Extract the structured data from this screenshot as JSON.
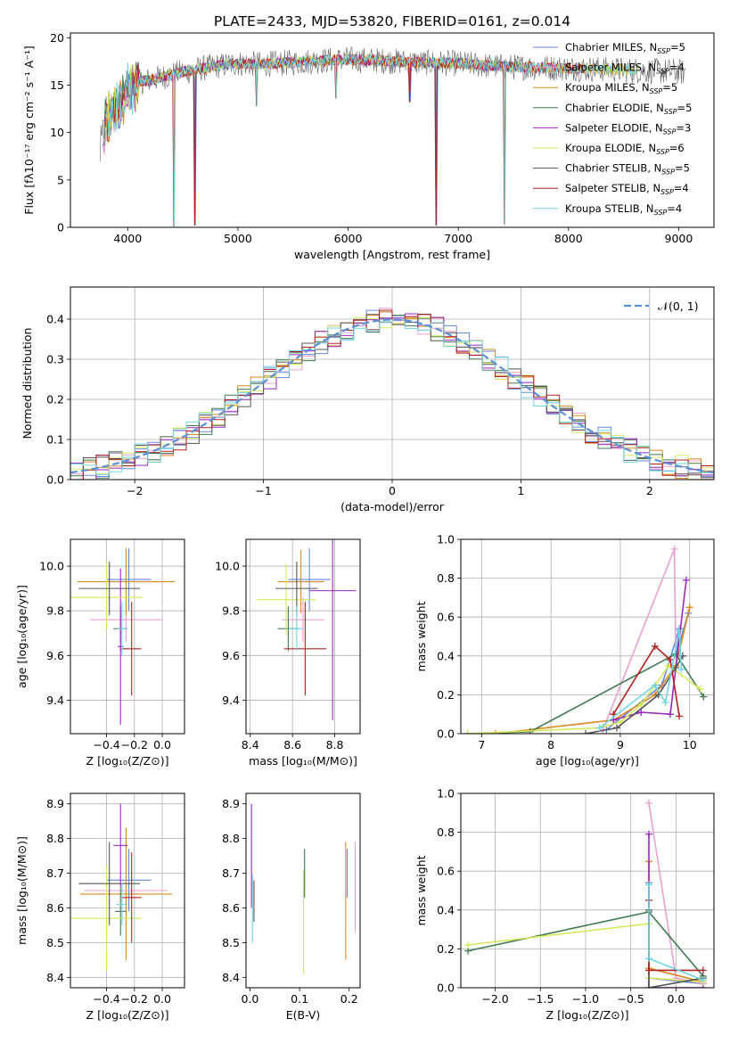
{
  "figure": {
    "title": "PLATE=2433, MJD=53820, FIBERID=0161, z=0.014"
  },
  "colors": {
    "series": [
      "#6688dd",
      "#e8a0d0",
      "#d98a20",
      "#3f7a50",
      "#9a28c0",
      "#d6e85a",
      "#555555",
      "#b22222",
      "#6fd6e0"
    ],
    "cmiles": "#6688dd",
    "smiles": "#e8a0d0",
    "kmiles": "#d98a20",
    "celodie": "#3f7a50",
    "selodie": "#9a28c0",
    "kelodie": "#d6e85a",
    "cstelib": "#555555",
    "sstelib": "#b22222",
    "kstelib": "#6fd6e0",
    "gauss": "#5b8fd6"
  },
  "chart_data": [
    {
      "id": "spectrum",
      "type": "line",
      "xlabel": "wavelength [Angstrom, rest frame]",
      "ylabel": "Flux [fλ10⁻¹⁷ erg cm⁻² s⁻¹ A⁻¹]",
      "xlim": [
        3480,
        9320
      ],
      "ylim": [
        0,
        20.5
      ],
      "xticks": [
        4000,
        5000,
        6000,
        7000,
        8000,
        9000
      ],
      "yticks": [
        0,
        5,
        10,
        15,
        20
      ],
      "legend_position": "top-right",
      "legend": [
        "Chabrier MILES, N_SSP=5",
        "Salpeter MILES, N_SSP=4",
        "Kroupa MILES, N_SSP=5",
        "Chabrier ELODIE, N_SSP=5",
        "Salpeter ELODIE, N_SSP=3",
        "Kroupa ELODIE, N_SSP=6",
        "Chabrier STELIB, N_SSP=5",
        "Salpeter STELIB, N_SSP=4",
        "Kroupa STELIB, N_SSP=4"
      ],
      "continuum": {
        "x": [
          3750,
          3800,
          3900,
          4000,
          4100,
          4300,
          4500,
          4800,
          5000,
          5200,
          5500,
          5800,
          6000,
          6300,
          6600,
          7000,
          7300,
          7600,
          8000,
          8500,
          9000,
          9060
        ],
        "y": [
          7.5,
          11.0,
          12.5,
          14.5,
          15.3,
          15.8,
          16.4,
          17.0,
          17.3,
          17.2,
          17.4,
          17.6,
          17.7,
          17.6,
          17.4,
          17.3,
          17.0,
          16.9,
          16.8,
          16.6,
          16.4,
          16.3
        ]
      },
      "absorption_lines": [
        {
          "x": 4420,
          "y": 0.1
        },
        {
          "x": 4610,
          "y": 0.2
        },
        {
          "x": 5170,
          "y": 12.8
        },
        {
          "x": 5890,
          "y": 13.6
        },
        {
          "x": 6560,
          "y": 13.2
        },
        {
          "x": 6800,
          "y": 0.2
        },
        {
          "x": 7420,
          "y": 0.3
        }
      ]
    },
    {
      "id": "residuals",
      "type": "line",
      "xlabel": "(data-model)/error",
      "ylabel": "Normed distribution",
      "xlim": [
        -2.5,
        2.5
      ],
      "ylim": [
        0,
        0.48
      ],
      "xticks": [
        -2,
        -1,
        0,
        1,
        2
      ],
      "yticks": [
        0.0,
        0.1,
        0.2,
        0.3,
        0.4
      ],
      "grid": true,
      "legend": [
        "𝒩(0, 1)"
      ],
      "legend_position": "top-right",
      "bin_width": 0.1,
      "bin_start": -2.5,
      "gaussian": {
        "mean": 0,
        "sigma": 1
      }
    },
    {
      "id": "age_vs_Z",
      "type": "scatter",
      "xlabel": "Z [log₁₀(Z/Z⊙)]",
      "ylabel": "age  [log₁₀(age/yr)]",
      "xlim": [
        -0.66,
        0.16
      ],
      "ylim": [
        9.25,
        10.12
      ],
      "xticks": [
        -0.4,
        -0.2,
        0.0
      ],
      "yticks": [
        9.4,
        9.6,
        9.8,
        10.0
      ],
      "grid": true,
      "points": [
        {
          "x": -0.24,
          "y": 9.94,
          "xerr": 0.16,
          "yerr": 0.14,
          "s": 0
        },
        {
          "x": -0.26,
          "y": 9.76,
          "xerr": 0.26,
          "yerr": 0.1,
          "s": 1
        },
        {
          "x": -0.26,
          "y": 9.93,
          "xerr": 0.35,
          "yerr": 0.15,
          "s": 2
        },
        {
          "x": -0.3,
          "y": 9.72,
          "xerr": 0.05,
          "yerr": 0.1,
          "s": 3
        },
        {
          "x": -0.3,
          "y": 9.64,
          "xerr": 0.02,
          "yerr": 0.35,
          "s": 4
        },
        {
          "x": -0.4,
          "y": 9.86,
          "xerr": 0.26,
          "yerr": 0.15,
          "s": 5
        },
        {
          "x": -0.38,
          "y": 9.9,
          "xerr": 0.22,
          "yerr": 0.12,
          "s": 6
        },
        {
          "x": -0.22,
          "y": 9.63,
          "xerr": 0.07,
          "yerr": 0.21,
          "s": 7
        },
        {
          "x": -0.29,
          "y": 9.72,
          "xerr": 0.04,
          "yerr": 0.12,
          "s": 8
        }
      ]
    },
    {
      "id": "age_vs_mass",
      "type": "scatter",
      "xlabel": "mass [log₁₀(M/M⊙)]",
      "ylabel": "",
      "xlim": [
        8.38,
        8.92
      ],
      "ylim": [
        9.25,
        10.12
      ],
      "xticks": [
        8.4,
        8.6,
        8.8
      ],
      "yticks": [
        9.4,
        9.6,
        9.8,
        10.0
      ],
      "grid": true,
      "points": [
        {
          "x": 8.68,
          "y": 9.94,
          "xerr": 0.1,
          "yerr": 0.14,
          "s": 0
        },
        {
          "x": 8.65,
          "y": 9.76,
          "xerr": 0.1,
          "yerr": 0.1,
          "s": 1
        },
        {
          "x": 8.64,
          "y": 9.93,
          "xerr": 0.11,
          "yerr": 0.14,
          "s": 2
        },
        {
          "x": 8.58,
          "y": 9.72,
          "xerr": 0.05,
          "yerr": 0.1,
          "s": 3
        },
        {
          "x": 8.79,
          "y": 9.89,
          "xerr": 0.11,
          "yerr": 0.58,
          "s": 4
        },
        {
          "x": 8.57,
          "y": 9.85,
          "xerr": 0.14,
          "yerr": 0.16,
          "s": 5
        },
        {
          "x": 8.62,
          "y": 9.9,
          "xerr": 0.1,
          "yerr": 0.12,
          "s": 6
        },
        {
          "x": 8.66,
          "y": 9.63,
          "xerr": 0.1,
          "yerr": 0.21,
          "s": 7
        },
        {
          "x": 8.62,
          "y": 9.72,
          "xerr": 0.04,
          "yerr": 0.1,
          "s": 8
        }
      ]
    },
    {
      "id": "weight_vs_age",
      "type": "line",
      "xlabel": "age  [log₁₀(age/yr)]",
      "ylabel": "mass weight",
      "xlim": [
        6.7,
        10.35
      ],
      "ylim": [
        0,
        1.0
      ],
      "xticks": [
        7,
        8,
        9,
        10
      ],
      "yticks": [
        0.0,
        0.2,
        0.4,
        0.6,
        0.8,
        1.0
      ],
      "grid": true,
      "series": [
        {
          "s": 0,
          "x": [
            8.8,
            9.6,
            9.85,
            9.8,
            9.98
          ],
          "y": [
            0.02,
            0.25,
            0.54,
            0.4,
            0.62
          ]
        },
        {
          "s": 1,
          "x": [
            8.75,
            9.78,
            9.8
          ],
          "y": [
            0.02,
            0.95,
            0.4
          ]
        },
        {
          "s": 2,
          "x": [
            7.2,
            8.9,
            9.5,
            9.8,
            10.0
          ],
          "y": [
            0.0,
            0.07,
            0.2,
            0.35,
            0.65
          ]
        },
        {
          "s": 3,
          "x": [
            6.8,
            7.7,
            9.8,
            10.2
          ],
          "y": [
            0.0,
            0.01,
            0.41,
            0.19
          ]
        },
        {
          "s": 4,
          "x": [
            8.9,
            9.3,
            9.72,
            9.95
          ],
          "y": [
            0.07,
            0.11,
            0.1,
            0.79
          ]
        },
        {
          "s": 5,
          "x": [
            6.8,
            8.7,
            9.0,
            9.3,
            9.7,
            10.15
          ],
          "y": [
            0.0,
            0.03,
            0.06,
            0.15,
            0.35,
            0.23
          ]
        },
        {
          "s": 6,
          "x": [
            8.5,
            8.95,
            9.55,
            9.8,
            9.9
          ],
          "y": [
            0.0,
            0.03,
            0.2,
            0.34,
            0.4
          ]
        },
        {
          "s": 7,
          "x": [
            8.9,
            9.5,
            9.72,
            9.85
          ],
          "y": [
            0.1,
            0.45,
            0.38,
            0.09
          ]
        },
        {
          "s": 8,
          "x": [
            8.7,
            9.5,
            9.65,
            9.85,
            9.88
          ],
          "y": [
            0.03,
            0.25,
            0.16,
            0.53,
            0.33
          ]
        }
      ]
    },
    {
      "id": "mass_vs_Z",
      "type": "scatter",
      "xlabel": "Z [log₁₀(Z/Z⊙)]",
      "ylabel": "mass [log₁₀(M/M⊙)]",
      "xlim": [
        -0.66,
        0.16
      ],
      "ylim": [
        8.37,
        8.93
      ],
      "xticks": [
        -0.4,
        -0.2,
        0.0
      ],
      "yticks": [
        8.4,
        8.5,
        8.6,
        8.7,
        8.8,
        8.9
      ],
      "grid": true,
      "points": [
        {
          "x": -0.24,
          "y": 8.68,
          "xerr": 0.16,
          "yerr": 0.09,
          "s": 0
        },
        {
          "x": -0.26,
          "y": 8.65,
          "xerr": 0.3,
          "yerr": 0.1,
          "s": 1
        },
        {
          "x": -0.26,
          "y": 8.64,
          "xerr": 0.33,
          "yerr": 0.19,
          "s": 2
        },
        {
          "x": -0.3,
          "y": 8.59,
          "xerr": 0.04,
          "yerr": 0.07,
          "s": 3
        },
        {
          "x": -0.3,
          "y": 8.78,
          "xerr": 0.05,
          "yerr": 0.12,
          "s": 4
        },
        {
          "x": -0.4,
          "y": 8.57,
          "xerr": 0.25,
          "yerr": 0.15,
          "s": 5
        },
        {
          "x": -0.38,
          "y": 8.67,
          "xerr": 0.22,
          "yerr": 0.12,
          "s": 6
        },
        {
          "x": -0.22,
          "y": 8.63,
          "xerr": 0.07,
          "yerr": 0.13,
          "s": 7
        },
        {
          "x": -0.29,
          "y": 8.61,
          "xerr": 0.04,
          "yerr": 0.06,
          "s": 8
        }
      ]
    },
    {
      "id": "mass_vs_ebv",
      "type": "scatter",
      "xlabel": "E(B-V)",
      "ylabel": "",
      "xlim": [
        -0.008,
        0.222
      ],
      "ylim": [
        8.37,
        8.93
      ],
      "xticks": [
        0.0,
        0.1,
        0.2
      ],
      "yticks": [
        8.4,
        8.5,
        8.6,
        8.7,
        8.8,
        8.9
      ],
      "points": [
        {
          "x": 0.003,
          "y": 8.75,
          "yerr": 0.15,
          "s": 4
        },
        {
          "x": 0.005,
          "y": 8.6,
          "yerr": 0.1,
          "s": 8
        },
        {
          "x": 0.008,
          "y": 8.62,
          "yerr": 0.06,
          "s": 6
        },
        {
          "x": 0.108,
          "y": 8.56,
          "yerr": 0.15,
          "s": 5
        },
        {
          "x": 0.11,
          "y": 8.7,
          "yerr": 0.07,
          "s": 3
        },
        {
          "x": 0.193,
          "y": 8.62,
          "yerr": 0.17,
          "s": 2
        },
        {
          "x": 0.196,
          "y": 8.7,
          "yerr": 0.07,
          "s": 0
        },
        {
          "x": 0.212,
          "y": 8.66,
          "yerr": 0.13,
          "s": 1
        }
      ]
    },
    {
      "id": "weight_vs_Z",
      "type": "line",
      "xlabel": "Z [log₁₀(Z/Z⊙)]",
      "ylabel": "mass weight",
      "xlim": [
        -2.38,
        0.42
      ],
      "ylim": [
        0,
        1.0
      ],
      "xticks": [
        -2.0,
        -1.5,
        -1.0,
        -0.5,
        0.0
      ],
      "yticks": [
        0.0,
        0.2,
        0.4,
        0.6,
        0.8,
        1.0
      ],
      "grid": true,
      "series": [
        {
          "s": 0,
          "x": [
            -0.3,
            -0.3,
            0.3
          ],
          "y": [
            0.54,
            0.05,
            0.02
          ]
        },
        {
          "s": 1,
          "x": [
            -0.3,
            0.0,
            0.3
          ],
          "y": [
            0.95,
            0.05,
            0.02
          ]
        },
        {
          "s": 2,
          "x": [
            -0.3,
            -0.3,
            0.3
          ],
          "y": [
            0.65,
            0.1,
            0.03
          ]
        },
        {
          "s": 3,
          "x": [
            -2.3,
            -0.3,
            0.3
          ],
          "y": [
            0.19,
            0.39,
            0.06
          ]
        },
        {
          "s": 4,
          "x": [
            -0.3,
            -0.3,
            0.3
          ],
          "y": [
            0.79,
            0.0,
            0.0
          ]
        },
        {
          "s": 5,
          "x": [
            -2.3,
            -0.3,
            -0.3,
            0.3
          ],
          "y": [
            0.22,
            0.33,
            0.05,
            0.03
          ]
        },
        {
          "s": 6,
          "x": [
            -0.3,
            -0.3,
            0.3
          ],
          "y": [
            0.4,
            0.0,
            0.05
          ]
        },
        {
          "s": 7,
          "x": [
            -0.3,
            -0.3,
            0.3
          ],
          "y": [
            0.45,
            0.09,
            0.09
          ]
        },
        {
          "s": 8,
          "x": [
            -0.3,
            -0.3,
            0.3
          ],
          "y": [
            0.53,
            0.15,
            0.04
          ]
        }
      ]
    }
  ]
}
